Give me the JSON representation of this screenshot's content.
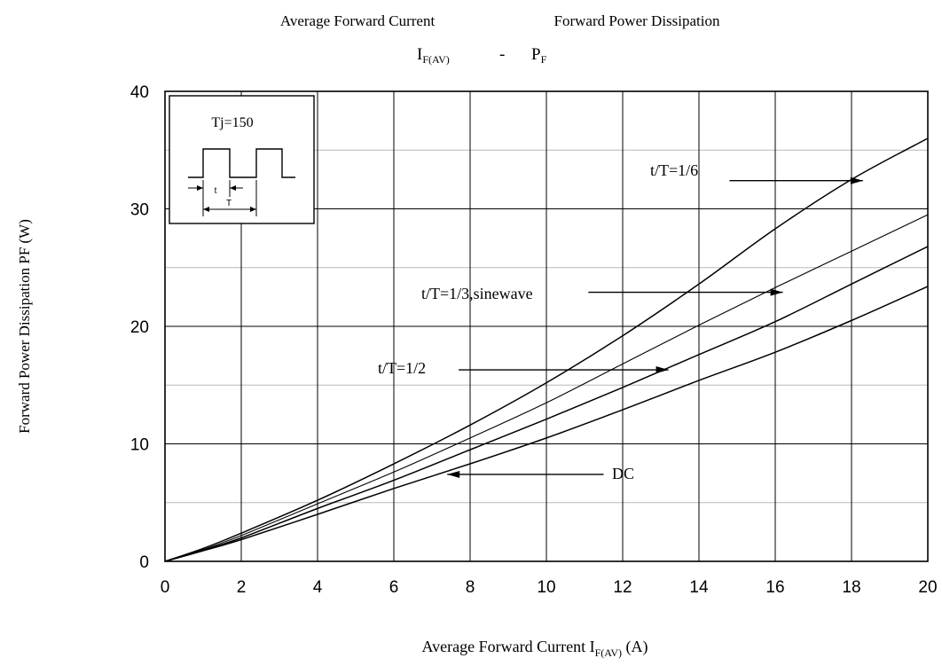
{
  "chart_data": {
    "type": "line",
    "title_line1_left": "Average Forward Current",
    "title_line1_right": "Forward Power Dissipation",
    "title_line2": {
      "a_main": "I",
      "a_sub": "F(AV)",
      "sep": "-",
      "b_main": "P",
      "b_sub": "F"
    },
    "xlabel": {
      "main": "Average Forward Current I",
      "sub": "F(AV)",
      "unit": " (A)"
    },
    "ylabel": "Forward Power Dissipation PF (W)",
    "xlim": [
      0,
      20
    ],
    "ylim": [
      0,
      40
    ],
    "x_ticks": [
      "0",
      "2",
      "4",
      "6",
      "8",
      "10",
      "12",
      "14",
      "16",
      "18",
      "20"
    ],
    "y_ticks": [
      "0",
      "10",
      "20",
      "30",
      "40"
    ],
    "grid": true,
    "inset": {
      "label": "Tj=150",
      "t_label": "t",
      "T_label": "T"
    },
    "series": [
      {
        "name": "t/T=1/6",
        "points": [
          [
            0,
            0
          ],
          [
            1,
            1.1
          ],
          [
            2,
            2.4
          ],
          [
            4,
            5.2
          ],
          [
            6,
            8.3
          ],
          [
            8,
            11.6
          ],
          [
            10,
            15.2
          ],
          [
            12,
            19.2
          ],
          [
            14,
            23.6
          ],
          [
            16,
            28.3
          ],
          [
            18,
            32.5
          ],
          [
            20,
            36
          ]
        ]
      },
      {
        "name": "t/T=1/3,sinewave",
        "points": [
          [
            0,
            0
          ],
          [
            1,
            1.0
          ],
          [
            2,
            2.2
          ],
          [
            4,
            4.9
          ],
          [
            6,
            7.6
          ],
          [
            8,
            10.5
          ],
          [
            10,
            13.5
          ],
          [
            12,
            16.8
          ],
          [
            14,
            20.1
          ],
          [
            16,
            23.3
          ],
          [
            18,
            26.4
          ],
          [
            20,
            29.5
          ]
        ]
      },
      {
        "name": "t/T=1/2",
        "points": [
          [
            0,
            0
          ],
          [
            1,
            0.95
          ],
          [
            2,
            2.0
          ],
          [
            4,
            4.5
          ],
          [
            6,
            6.9
          ],
          [
            8,
            9.5
          ],
          [
            10,
            12.1
          ],
          [
            12,
            14.8
          ],
          [
            14,
            17.6
          ],
          [
            16,
            20.4
          ],
          [
            18,
            23.6
          ],
          [
            20,
            26.8
          ]
        ]
      },
      {
        "name": "DC",
        "points": [
          [
            0,
            0
          ],
          [
            1,
            0.9
          ],
          [
            2,
            1.85
          ],
          [
            4,
            4.0
          ],
          [
            6,
            6.2
          ],
          [
            8,
            8.3
          ],
          [
            10,
            10.5
          ],
          [
            12,
            12.9
          ],
          [
            14,
            15.4
          ],
          [
            16,
            17.8
          ],
          [
            18,
            20.5
          ],
          [
            20,
            23.4
          ]
        ]
      }
    ],
    "annotations": [
      {
        "text": "t/T=1/6",
        "arrow_from": [
          14.8,
          32.4
        ],
        "arrow_to": [
          18.3,
          32.4
        ]
      },
      {
        "text": "t/T=1/3,sinewave",
        "arrow_from": [
          11.1,
          22.9
        ],
        "arrow_to": [
          16.2,
          22.9
        ]
      },
      {
        "text": "t/T=1/2",
        "arrow_from": [
          7.7,
          16.3
        ],
        "arrow_to": [
          13.2,
          16.3
        ]
      },
      {
        "text": "DC",
        "arrow_from": [
          11.5,
          7.4
        ],
        "arrow_to": [
          7.4,
          7.4
        ]
      }
    ]
  }
}
